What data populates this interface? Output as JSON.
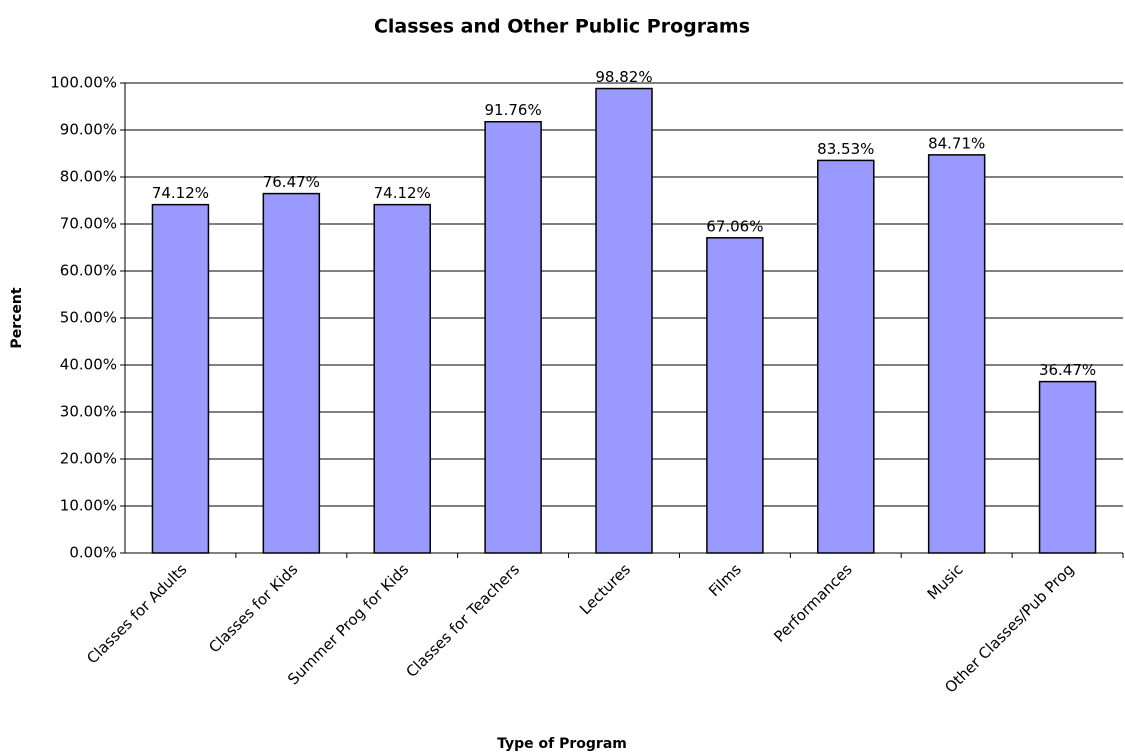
{
  "chart_data": {
    "type": "bar",
    "title": "Classes and Other Public Programs",
    "x_label": "Type of Program",
    "y_label": "Percent",
    "categories": [
      "Classes for Adults",
      "Classes for Kids",
      "Summer Prog for Kids",
      "Classes for Teachers",
      "Lectures",
      "Films",
      "Performances",
      "Music",
      "Other Classes/Pub Prog"
    ],
    "values": [
      74.12,
      76.47,
      74.12,
      91.76,
      98.82,
      67.06,
      83.53,
      84.71,
      36.47
    ],
    "value_labels": [
      "74.12%",
      "76.47%",
      "74.12%",
      "91.76%",
      "98.82%",
      "67.06%",
      "83.53%",
      "84.71%",
      "36.47%"
    ],
    "color": "#9999ff",
    "ylim": [
      0,
      100
    ],
    "yticks": [
      {
        "value": 0,
        "label": "0.00%"
      },
      {
        "value": 10,
        "label": "10.00%"
      },
      {
        "value": 20,
        "label": "20.00%"
      },
      {
        "value": 30,
        "label": "30.00%"
      },
      {
        "value": 40,
        "label": "40.00%"
      },
      {
        "value": 50,
        "label": "50.00%"
      },
      {
        "value": 60,
        "label": "60.00%"
      },
      {
        "value": 70,
        "label": "70.00%"
      },
      {
        "value": 80,
        "label": "80.00%"
      },
      {
        "value": 90,
        "label": "90.00%"
      },
      {
        "value": 100,
        "label": "100.00%"
      }
    ],
    "grid": true
  }
}
